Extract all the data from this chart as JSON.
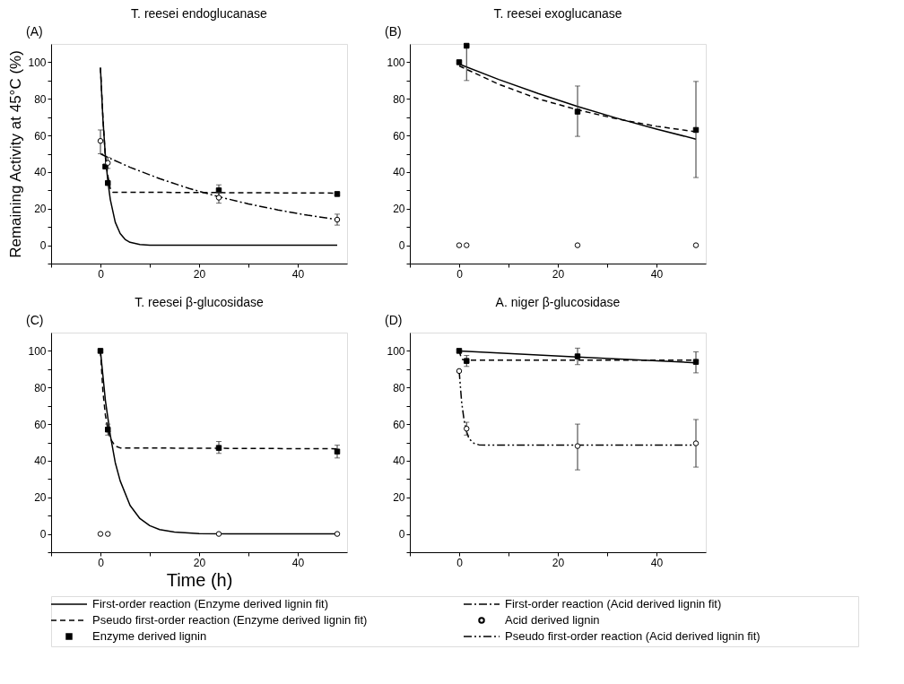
{
  "chart_data": [
    {
      "type": "scatter",
      "title": "T. reesei endoglucanase",
      "annotations": [
        "(A)"
      ],
      "ylabel": "Remaining Activity at 45°C (%)",
      "legend": "bottom",
      "xlim": [
        -10,
        50
      ],
      "ylim": [
        -10,
        110
      ],
      "xticks": [
        {
          "value": -10,
          "label": null
        },
        0,
        {
          "value": 10,
          "label": null
        },
        20,
        {
          "value": 30,
          "label": null
        },
        40
      ],
      "yticks": [
        {
          "value": -10,
          "label": null
        },
        0,
        {
          "value": 10,
          "label": null
        },
        20,
        {
          "value": 30,
          "label": null
        },
        40,
        {
          "value": 50,
          "label": null
        },
        60,
        {
          "value": 70,
          "label": null
        },
        80,
        {
          "value": 90,
          "label": null
        },
        100
      ],
      "series": [
        {
          "name": "First-order reaction (Enzyme derived lignin fit)",
          "type": "line",
          "line_style": "solid",
          "color": "#000000",
          "x": [
            0,
            0.5,
            1,
            1.5,
            2,
            3,
            4,
            5,
            6,
            8,
            10,
            20,
            48
          ],
          "values": [
            97,
            69,
            49,
            35,
            25,
            12.6,
            6.4,
            3.2,
            1.6,
            0.4,
            0.1,
            0,
            0
          ]
        },
        {
          "name": "Pseudo first-order reaction (Enzyme derived lignin fit)",
          "type": "line",
          "line_style": "dashed",
          "color": "#000000",
          "x": [
            0,
            0.5,
            1,
            1.5,
            2,
            2.5,
            48
          ],
          "values": [
            97,
            70,
            48,
            38,
            31,
            29,
            28.5
          ]
        },
        {
          "name": "Enzyme derived lignin",
          "marker": "square",
          "color": "#000000",
          "x": [
            1,
            1.5,
            24,
            48
          ],
          "values": [
            43,
            34,
            30,
            28
          ],
          "errors": [
            null,
            null,
            [
              26.5,
              33
            ],
            null
          ]
        },
        {
          "name": "First-order reaction (Acid derived lignin fit)",
          "type": "line",
          "line_style": "dashdot",
          "color": "#000000",
          "x": [
            0,
            1.5,
            6,
            12,
            18,
            24,
            30,
            36,
            42,
            48
          ],
          "values": [
            50,
            48,
            42.6,
            36.4,
            31,
            26.5,
            22.6,
            19.3,
            16.4,
            14
          ]
        },
        {
          "name": "Acid derived lignin",
          "marker": "circle",
          "color": "#000000",
          "x": [
            0,
            1.5,
            24,
            48
          ],
          "values": [
            57,
            45,
            26,
            14
          ],
          "errors": [
            [
              50,
              63
            ],
            [
              42,
              48
            ],
            [
              23,
              29
            ],
            [
              11,
              17
            ]
          ]
        }
      ]
    },
    {
      "type": "scatter",
      "title": "T. reesei exoglucanase",
      "annotations": [
        "(B)"
      ],
      "xlim": [
        -10,
        50
      ],
      "ylim": [
        -10,
        110
      ],
      "xticks": [
        {
          "value": -10,
          "label": null
        },
        0,
        {
          "value": 10,
          "label": null
        },
        20,
        {
          "value": 30,
          "label": null
        },
        40
      ],
      "yticks": [
        {
          "value": -10,
          "label": null
        },
        0,
        {
          "value": 10,
          "label": null
        },
        20,
        {
          "value": 30,
          "label": null
        },
        40,
        {
          "value": 50,
          "label": null
        },
        60,
        {
          "value": 70,
          "label": null
        },
        80,
        {
          "value": 90,
          "label": null
        },
        100
      ],
      "series": [
        {
          "type": "line",
          "line_style": "solid",
          "color": "#000000",
          "x": [
            0,
            8,
            16,
            24,
            32,
            40,
            48
          ],
          "values": [
            99,
            90.6,
            82.9,
            75.8,
            69.4,
            63.5,
            58
          ]
        },
        {
          "type": "line",
          "line_style": "dashed",
          "color": "#000000",
          "x": [
            0,
            8,
            16,
            24,
            32,
            40,
            48
          ],
          "values": [
            98,
            88,
            80,
            74,
            69,
            65,
            62
          ]
        },
        {
          "marker": "square",
          "color": "#000000",
          "x": [
            0,
            1.5,
            24,
            48
          ],
          "values": [
            100,
            109,
            73,
            63
          ],
          "errors": [
            null,
            [
              90,
              109
            ],
            [
              59.5,
              87
            ],
            [
              37,
              89.5
            ]
          ]
        },
        {
          "marker": "circle",
          "color": "#000000",
          "x": [
            0,
            1.5,
            24,
            48
          ],
          "values": [
            0,
            0,
            0,
            0
          ]
        }
      ]
    },
    {
      "type": "scatter",
      "title": "T. reesei β-glucosidase",
      "annotations": [
        "(C)"
      ],
      "xlabel": "Time (h)",
      "xlim": [
        -10,
        50
      ],
      "ylim": [
        -10,
        110
      ],
      "xticks": [
        {
          "value": -10,
          "label": null
        },
        0,
        {
          "value": 10,
          "label": null
        },
        20,
        {
          "value": 30,
          "label": null
        },
        40
      ],
      "yticks": [
        {
          "value": -10,
          "label": null
        },
        0,
        {
          "value": 10,
          "label": null
        },
        20,
        {
          "value": 30,
          "label": null
        },
        40,
        {
          "value": 50,
          "label": null
        },
        60,
        {
          "value": 70,
          "label": null
        },
        80,
        {
          "value": 90,
          "label": null
        },
        100
      ],
      "series": [
        {
          "type": "line",
          "line_style": "solid",
          "color": "#000000",
          "x": [
            0,
            1,
            2,
            3,
            4,
            6,
            8,
            10,
            12,
            15,
            20,
            30,
            48
          ],
          "values": [
            100,
            73,
            54,
            39,
            29,
            15.6,
            8.4,
            4.5,
            2.4,
            1,
            0.2,
            0,
            0
          ]
        },
        {
          "type": "line",
          "line_style": "dashed",
          "color": "#000000",
          "x": [
            0,
            0.5,
            1,
            1.5,
            2,
            3,
            4,
            48
          ],
          "values": [
            100,
            78,
            65,
            57,
            52,
            48,
            47,
            46.5
          ]
        },
        {
          "marker": "square",
          "color": "#000000",
          "x": [
            0,
            1.5,
            24,
            48
          ],
          "values": [
            100,
            57,
            47,
            45
          ],
          "errors": [
            null,
            [
              54,
              60
            ],
            [
              44,
              50.5
            ],
            [
              41.5,
              48.5
            ]
          ]
        },
        {
          "marker": "circle",
          "color": "#000000",
          "x": [
            0,
            1.5,
            24,
            48
          ],
          "values": [
            0,
            0,
            0,
            0
          ]
        }
      ]
    },
    {
      "type": "scatter",
      "title": "A. niger β-glucosidase",
      "annotations": [
        "(D)"
      ],
      "xlim": [
        -10,
        50
      ],
      "ylim": [
        -10,
        110
      ],
      "xticks": [
        {
          "value": -10,
          "label": null
        },
        0,
        {
          "value": 10,
          "label": null
        },
        20,
        {
          "value": 30,
          "label": null
        },
        40
      ],
      "yticks": [
        {
          "value": -10,
          "label": null
        },
        0,
        {
          "value": 10,
          "label": null
        },
        20,
        {
          "value": 30,
          "label": null
        },
        40,
        {
          "value": 50,
          "label": null
        },
        60,
        {
          "value": 70,
          "label": null
        },
        80,
        {
          "value": 90,
          "label": null
        },
        100
      ],
      "series": [
        {
          "type": "line",
          "line_style": "solid",
          "color": "#000000",
          "x": [
            0,
            24,
            48
          ],
          "values": [
            100,
            96.7,
            93.5
          ]
        },
        {
          "type": "line",
          "line_style": "dashed",
          "color": "#000000",
          "x": [
            0,
            0.5,
            1,
            48
          ],
          "values": [
            100,
            95.5,
            95,
            95
          ]
        },
        {
          "name": "Pseudo first-order reaction (Acid derived lignin fit)",
          "type": "line",
          "line_style": "dashdotdot",
          "color": "#000000",
          "x": [
            0,
            0.5,
            1,
            1.5,
            2,
            3,
            4,
            6,
            48
          ],
          "values": [
            89,
            72,
            62,
            56,
            52,
            49.5,
            48.7,
            48.5,
            48.5
          ]
        },
        {
          "marker": "square",
          "color": "#000000",
          "x": [
            0,
            1.5,
            24,
            48
          ],
          "values": [
            100,
            94.5,
            97,
            94
          ],
          "errors": [
            null,
            [
              91.5,
              97.5
            ],
            [
              92.5,
              101.5
            ],
            [
              88,
              99.5
            ]
          ]
        },
        {
          "marker": "circle",
          "color": "#000000",
          "x": [
            0,
            1.5,
            24,
            48
          ],
          "values": [
            89,
            57.5,
            48,
            49.5
          ],
          "errors": [
            null,
            [
              54,
              61
            ],
            [
              35,
              60
            ],
            [
              36.5,
              62.5
            ]
          ]
        }
      ]
    }
  ]
}
